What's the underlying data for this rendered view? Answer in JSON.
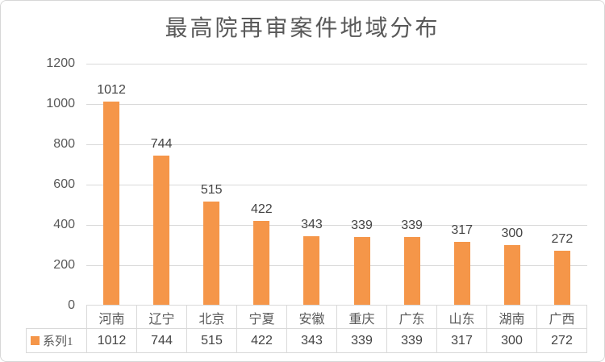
{
  "chart_data": {
    "type": "bar",
    "title": "最高院再审案件地域分布",
    "categories": [
      "河南",
      "辽宁",
      "北京",
      "宁夏",
      "安徽",
      "重庆",
      "广东",
      "山东",
      "湖南",
      "广西"
    ],
    "series": [
      {
        "name": "系列1",
        "values": [
          1012,
          744,
          515,
          422,
          343,
          339,
          339,
          317,
          300,
          272
        ]
      }
    ],
    "xlabel": "",
    "ylabel": "",
    "ylim": [
      0,
      1200
    ],
    "y_ticks": [
      1200,
      1000,
      800,
      600,
      400,
      200,
      0
    ],
    "grid": true,
    "data_labels": true,
    "data_table": true,
    "legend_position": "data-table-left"
  },
  "colors": {
    "bar": "#F59649",
    "gridline": "#D9D9D9",
    "chart_border": "#D7D7D7",
    "title_text": "#595959",
    "axis_text": "#595959",
    "data_label_text": "#444444"
  }
}
